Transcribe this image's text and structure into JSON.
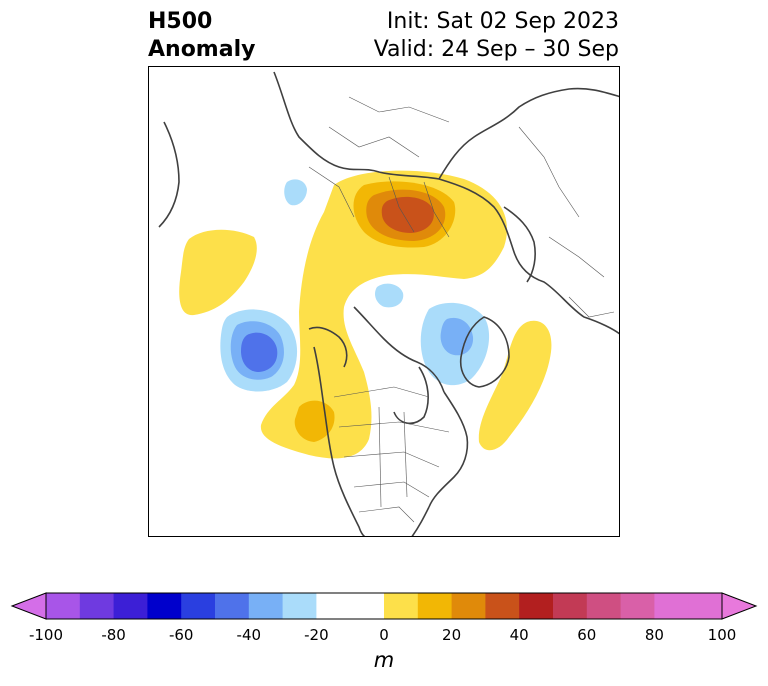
{
  "title": {
    "left_line1": "H500",
    "left_line2": "Anomaly",
    "right_line1": "Init: Sat 02 Sep 2023",
    "right_line2": "Valid: 24 Sep – 30 Sep"
  },
  "colorbar": {
    "unit": "m",
    "ticks": [
      "-100",
      "-80",
      "-60",
      "-40",
      "-20",
      "0",
      "20",
      "40",
      "60",
      "80",
      "100"
    ],
    "colors": [
      "#a855e8",
      "#6f3ae0",
      "#3c1fd6",
      "#0000cc",
      "#2a3fe0",
      "#4f72ea",
      "#78b0f6",
      "#aadcfa",
      "#ffffff",
      "#ffffff",
      "#fde04a",
      "#f2b705",
      "#e08a0a",
      "#c9521a",
      "#b21f1f",
      "#c23a55",
      "#cf4f82",
      "#d960a8",
      "#e070d5",
      "#e070d5"
    ],
    "extend_low_color": "#d46ee8",
    "extend_high_color": "#e879dc"
  },
  "map": {
    "projection": "north polar stereographic",
    "anomaly_colors": {
      "pos_10": "#fde04a",
      "pos_20": "#f2b705",
      "pos_30": "#e08a0a",
      "pos_40": "#c9521a",
      "neg_10": "#aadcfa",
      "neg_20": "#78b0f6",
      "neg_30": "#4f72ea"
    }
  }
}
